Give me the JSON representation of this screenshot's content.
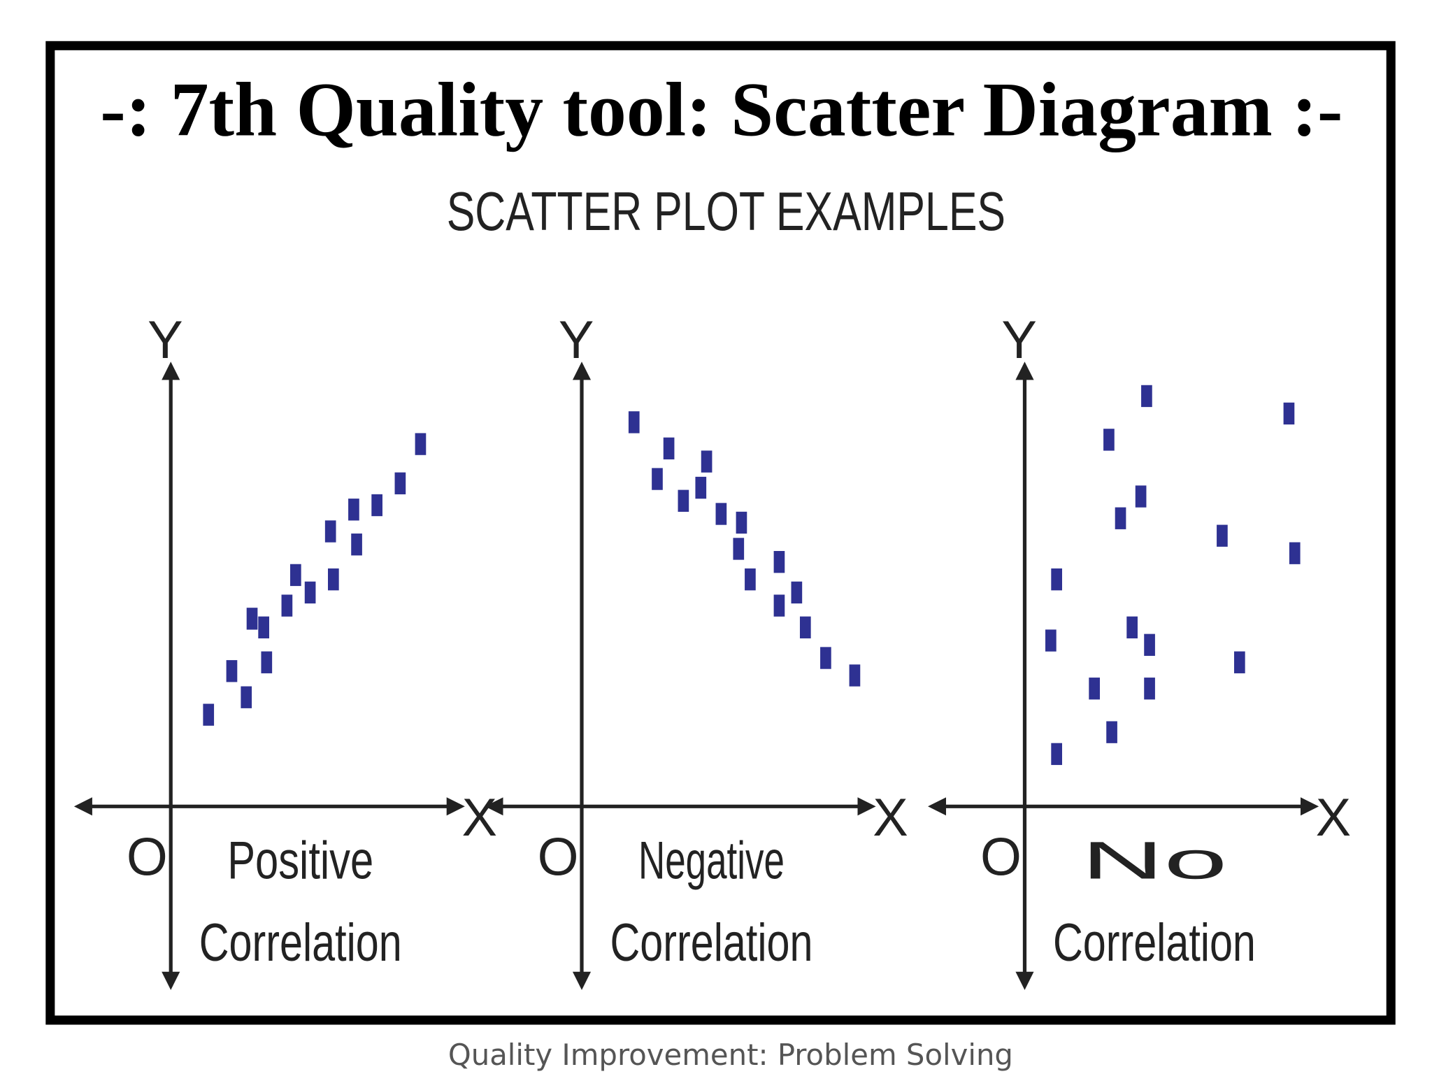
{
  "title": "-: 7th Quality tool: Scatter Diagram :-",
  "subtitle": "SCATTER PLOT EXAMPLES",
  "footer": "Quality Improvement: Problem Solving",
  "chart_data": [
    {
      "type": "scatter",
      "x_label": "X",
      "y_label": "Y",
      "origin_label": "O",
      "caption": [
        "Positive",
        "Correlation"
      ],
      "color": "#2e3192",
      "xlim": [
        0,
        100
      ],
      "ylim": [
        0,
        100
      ],
      "x": [
        13,
        21,
        26,
        28,
        32,
        33,
        40,
        43,
        48,
        56,
        55,
        64,
        63,
        71,
        79,
        86
      ],
      "values": [
        21,
        31,
        25,
        43,
        41,
        33,
        46,
        53,
        49,
        52,
        63,
        60,
        68,
        69,
        74,
        83
      ]
    },
    {
      "type": "scatter",
      "x_label": "X",
      "y_label": "Y",
      "origin_label": "O",
      "caption": [
        "Negative",
        "Correlation"
      ],
      "color": "#2e3192",
      "xlim": [
        0,
        100
      ],
      "ylim": [
        0,
        100
      ],
      "x": [
        18,
        26,
        30,
        35,
        41,
        43,
        48,
        55,
        54,
        58,
        68,
        68,
        74,
        77,
        84,
        94
      ],
      "values": [
        88,
        75,
        82,
        70,
        73,
        79,
        67,
        65,
        59,
        52,
        56,
        46,
        49,
        41,
        34,
        30
      ]
    },
    {
      "type": "scatter",
      "x_label": "X",
      "y_label": "Y",
      "origin_label": "O",
      "caption": [
        "No",
        "Correlation"
      ],
      "color": "#2e3192",
      "xlim": [
        0,
        100
      ],
      "ylim": [
        0,
        100
      ],
      "x": [
        42,
        91,
        29,
        40,
        33,
        68,
        93,
        11,
        37,
        9,
        43,
        74,
        24,
        43,
        30,
        11
      ],
      "values": [
        94,
        90,
        84,
        71,
        66,
        62,
        58,
        52,
        41,
        38,
        37,
        33,
        27,
        27,
        17,
        12
      ]
    }
  ]
}
